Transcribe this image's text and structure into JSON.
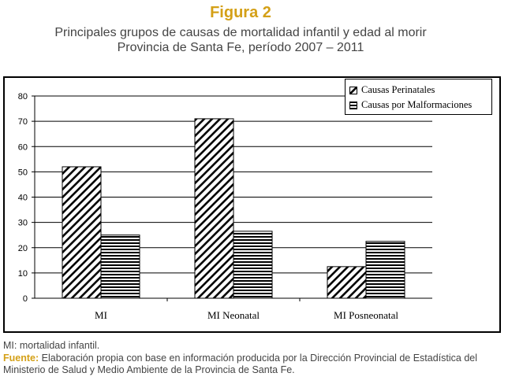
{
  "figure_label": "Figura 2",
  "title_line1": "Principales grupos de causas de mortalidad infantil y edad al morir",
  "title_line2": "Provincia de Santa Fe, período 2007 – 2011",
  "chart_data": {
    "type": "bar",
    "categories": [
      "MI",
      "MI Neonatal",
      "MI Posneonatal"
    ],
    "series": [
      {
        "name": "Causas Perinatales",
        "values": [
          52,
          71,
          12.5
        ],
        "pattern": "diagonal"
      },
      {
        "name": "Causas por Malformaciones",
        "values": [
          25,
          26.5,
          22.5
        ],
        "pattern": "horizontal"
      }
    ],
    "yticks": [
      0,
      10,
      20,
      30,
      40,
      50,
      60,
      70,
      80
    ],
    "ylim": [
      0,
      80
    ],
    "grid": true,
    "legend_position": "top-right",
    "colors": {
      "bar_stroke": "#000000",
      "grid": "#000000"
    }
  },
  "footnote": "MI: mortalidad infantil.",
  "source_label": "Fuente:",
  "source_text": "Elaboración propia con base en información producida por la Dirección Provincial de Estadística del Ministerio de Salud y Medio Ambiente de la Provincia de Santa Fe."
}
